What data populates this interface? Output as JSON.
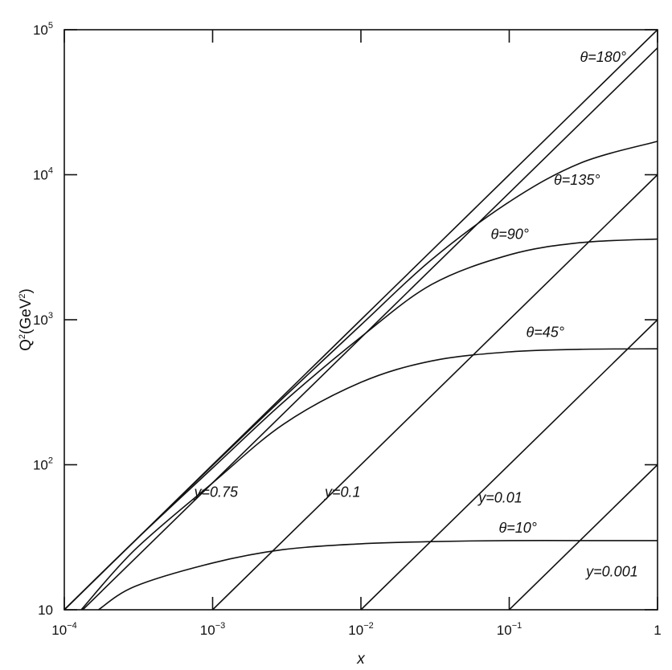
{
  "chart_data": {
    "type": "line",
    "title": "",
    "xlabel": "x",
    "ylabel": "Q²(GeV²)",
    "ylabel_parts": {
      "q": "Q",
      "exp": "2",
      "open": "(GeV",
      "exp2": "2",
      "close": ")"
    },
    "xscale": "log",
    "yscale": "log",
    "xlim": [
      0.0001,
      1
    ],
    "ylim": [
      10,
      100000
    ],
    "grid": false,
    "legend": "none",
    "x_ticks": [
      {
        "value": 0.0001,
        "base": "10",
        "exp": "−4"
      },
      {
        "value": 0.001,
        "base": "10",
        "exp": "−3"
      },
      {
        "value": 0.01,
        "base": "10",
        "exp": "−2"
      },
      {
        "value": 0.1,
        "base": "10",
        "exp": "−1"
      },
      {
        "value": 1,
        "base": "1",
        "exp": ""
      }
    ],
    "y_ticks": [
      {
        "value": 10,
        "base": "10",
        "exp": ""
      },
      {
        "value": 100,
        "base": "10",
        "exp": "2"
      },
      {
        "value": 1000,
        "base": "10",
        "exp": "3"
      },
      {
        "value": 10000,
        "base": "10",
        "exp": "4"
      },
      {
        "value": 100000,
        "base": "10",
        "exp": "5"
      }
    ],
    "series": [
      {
        "family": "theta",
        "label": "θ=180°",
        "x": [
          0.0001,
          0.0003,
          0.001,
          0.003,
          0.01,
          0.03,
          0.1,
          0.3,
          1
        ],
        "y": [
          10,
          30,
          100,
          300,
          1000,
          3000,
          10000,
          30000,
          100000
        ]
      },
      {
        "family": "theta",
        "label": "θ=135°",
        "x": [
          0.0001,
          0.0003,
          0.001,
          0.003,
          0.01,
          0.03,
          0.1,
          0.3,
          1
        ],
        "y": [
          10,
          30,
          99,
          290,
          920,
          2600,
          6500,
          12000,
          17000
        ]
      },
      {
        "family": "theta",
        "label": "θ=90°",
        "x": [
          0.0001,
          0.0003,
          0.001,
          0.003,
          0.01,
          0.03,
          0.1,
          0.3,
          1
        ],
        "y": [
          10,
          30,
          95,
          270,
          760,
          1750,
          2800,
          3400,
          3600
        ]
      },
      {
        "family": "theta",
        "label": "θ=45°",
        "x": [
          0.00013,
          0.0003,
          0.001,
          0.003,
          0.01,
          0.03,
          0.1,
          0.3,
          1
        ],
        "y": [
          10,
          26,
          75,
          190,
          370,
          520,
          600,
          625,
          630
        ]
      },
      {
        "family": "theta",
        "label": "θ=10°",
        "x": [
          0.00017,
          0.0003,
          0.001,
          0.003,
          0.01,
          0.03,
          0.1,
          0.3,
          1
        ],
        "y": [
          10,
          14.5,
          21,
          26,
          28.5,
          29.5,
          30,
          30,
          30
        ]
      },
      {
        "family": "y",
        "label": "y=0.75",
        "x": [
          0.000133,
          1
        ],
        "y": [
          10,
          75000
        ]
      },
      {
        "family": "y",
        "label": "y=0.1",
        "x": [
          0.001,
          1
        ],
        "y": [
          10,
          10000
        ]
      },
      {
        "family": "y",
        "label": "y=0.01",
        "x": [
          0.01,
          1
        ],
        "y": [
          10,
          1000
        ]
      },
      {
        "family": "y",
        "label": "y=0.001",
        "x": [
          0.1,
          1
        ],
        "y": [
          10,
          100
        ]
      }
    ],
    "annotations": [
      {
        "text": "θ=180°",
        "x": 0.3,
        "y": 60000
      },
      {
        "text": "θ=135°",
        "x": 0.2,
        "y": 8500
      },
      {
        "text": "θ=90°",
        "x": 0.075,
        "y": 3600
      },
      {
        "text": "θ=45°",
        "x": 0.13,
        "y": 760
      },
      {
        "text": "θ=10°",
        "x": 0.085,
        "y": 34
      },
      {
        "text": "y=0.75",
        "x": 0.00075,
        "y": 60
      },
      {
        "text": "y=0.1",
        "x": 0.0057,
        "y": 60
      },
      {
        "text": "y=0.01",
        "x": 0.062,
        "y": 55
      },
      {
        "text": "y=0.001",
        "x": 0.33,
        "y": 17
      }
    ]
  }
}
